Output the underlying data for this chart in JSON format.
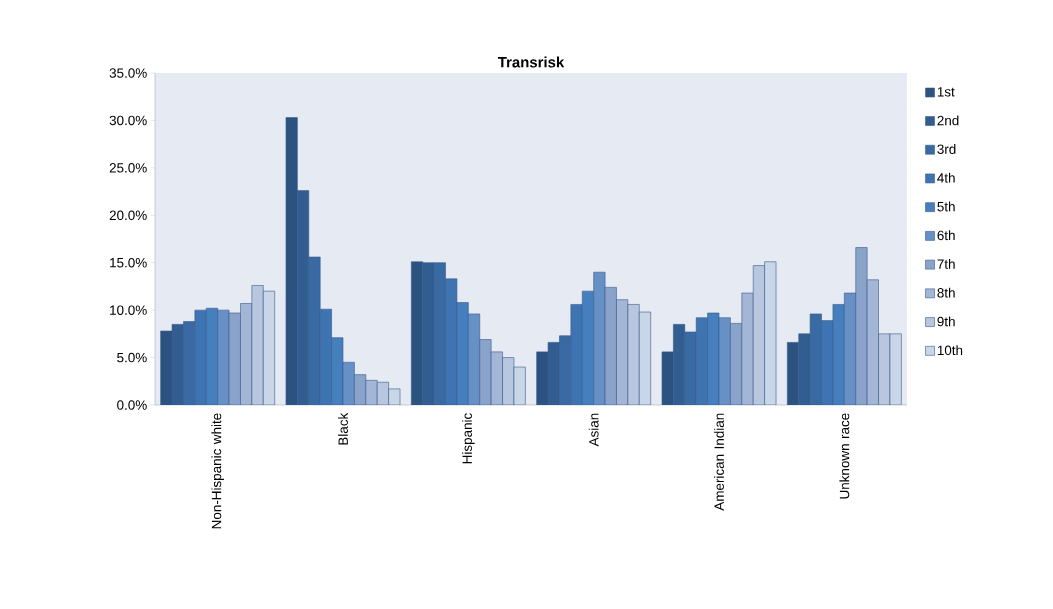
{
  "chart_data": {
    "type": "bar",
    "title": "Transrisk",
    "categories": [
      "Non-Hispanic white",
      "Black",
      "Hispanic",
      "Asian",
      "American Indian",
      "Unknown race"
    ],
    "series": [
      {
        "name": "1st",
        "color": "#2c5380",
        "values": [
          7.8,
          30.3,
          15.1,
          5.6,
          5.6,
          6.6
        ]
      },
      {
        "name": "2nd",
        "color": "#325d91",
        "values": [
          8.5,
          22.6,
          15.0,
          6.6,
          8.5,
          7.5
        ]
      },
      {
        "name": "3rd",
        "color": "#3a6aa3",
        "values": [
          8.8,
          15.6,
          15.0,
          7.3,
          7.7,
          9.6
        ]
      },
      {
        "name": "4th",
        "color": "#3f74b2",
        "values": [
          10.0,
          10.1,
          13.3,
          10.6,
          9.2,
          8.9
        ]
      },
      {
        "name": "5th",
        "color": "#457fbe",
        "values": [
          10.2,
          7.1,
          10.8,
          12.0,
          9.7,
          10.6
        ]
      },
      {
        "name": "6th",
        "color": "#6690c6",
        "values": [
          10.0,
          4.5,
          9.6,
          14.0,
          9.2,
          11.8
        ]
      },
      {
        "name": "7th",
        "color": "#8aa3ca",
        "values": [
          9.7,
          3.2,
          6.9,
          12.4,
          8.6,
          16.6
        ]
      },
      {
        "name": "8th",
        "color": "#a3b6d6",
        "values": [
          10.7,
          2.6,
          5.6,
          11.1,
          11.8,
          13.2
        ]
      },
      {
        "name": "9th",
        "color": "#b8c7df",
        "values": [
          12.6,
          2.4,
          5.0,
          10.6,
          14.7,
          7.5
        ]
      },
      {
        "name": "10th",
        "color": "#c9d6e7",
        "values": [
          12.0,
          1.7,
          4.0,
          9.8,
          15.1,
          7.5
        ]
      }
    ],
    "ylim": [
      0,
      35
    ],
    "yticks": [
      {
        "value": 0,
        "label": "0.0%"
      },
      {
        "value": 5,
        "label": "5.0%"
      },
      {
        "value": 10,
        "label": "10.0%"
      },
      {
        "value": 15,
        "label": "15.0%"
      },
      {
        "value": 20,
        "label": "20.0%"
      },
      {
        "value": 25,
        "label": "25.0%"
      },
      {
        "value": 30,
        "label": "30.0%"
      },
      {
        "value": 35,
        "label": "35.0%"
      }
    ],
    "grid": false,
    "legend": "right"
  }
}
